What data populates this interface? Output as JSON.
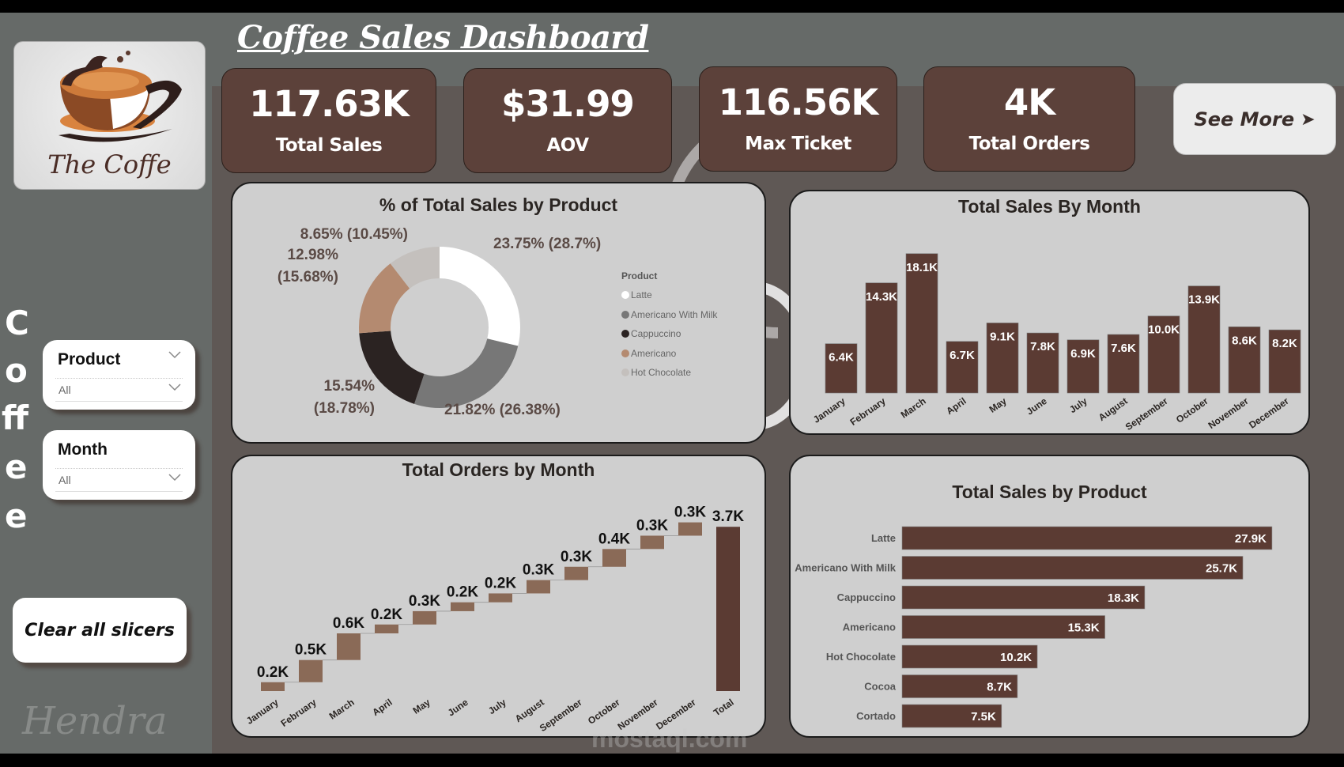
{
  "header": {
    "title": "Coffee Sales Dashboard",
    "logo_text": "The Coffe",
    "see_more_label": "See More"
  },
  "kpis": [
    {
      "value": "117.63K",
      "label": "Total Sales"
    },
    {
      "value": "$31.99",
      "label": "AOV"
    },
    {
      "value": "116.56K",
      "label": "Max Ticket"
    },
    {
      "value": "4K",
      "label": "Total Orders"
    }
  ],
  "sidebar": {
    "vertical_word": [
      "C",
      "o",
      "ff",
      "e",
      "e"
    ],
    "slicers": [
      {
        "title": "Product",
        "value": "All"
      },
      {
        "title": "Month",
        "value": "All"
      }
    ],
    "clear_label": "Clear all slicers",
    "signature": "Hendra"
  },
  "watermark": "mostaql.com",
  "colors": {
    "bar": "#5b3b33",
    "waterfall_step": "#8a6a57",
    "panel_bg": "#cfcfcf",
    "kpi_bg": "#5c413a"
  },
  "chart_data": [
    {
      "type": "pie",
      "variant": "donut",
      "title": "% of Total Sales by Product",
      "legend_title": "Product",
      "legend_position": "right",
      "slices": [
        {
          "name": "Latte",
          "value": 23.75,
          "label": "23.75% (28.7%)",
          "color": "#ffffff"
        },
        {
          "name": "Americano With Milk",
          "value": 21.82,
          "label": "21.82% (26.38%)",
          "color": "#777777"
        },
        {
          "name": "Cappuccino",
          "value": 15.54,
          "label": "15.54% (18.78%)",
          "color": "#2b2322"
        },
        {
          "name": "Americano",
          "value": 12.98,
          "label": "12.98% (15.68%)",
          "color": "#b48a70"
        },
        {
          "name": "Hot Chocolate",
          "value": 8.65,
          "label": "8.65% (10.45%)",
          "color": "#c4c0bd"
        }
      ]
    },
    {
      "type": "bar",
      "title": "Total Sales By Month",
      "categories": [
        "January",
        "February",
        "March",
        "April",
        "May",
        "June",
        "July",
        "August",
        "September",
        "October",
        "November",
        "December"
      ],
      "values": [
        6.4,
        14.3,
        18.1,
        6.7,
        9.1,
        7.8,
        6.9,
        7.6,
        10.0,
        13.9,
        8.6,
        8.2
      ],
      "labels": [
        "6.4K",
        "14.3K",
        "18.1K",
        "6.7K",
        "9.1K",
        "7.8K",
        "6.9K",
        "7.6K",
        "10.0K",
        "13.9K",
        "8.6K",
        "8.2K"
      ],
      "unit": "K",
      "ylim": [
        0,
        19
      ]
    },
    {
      "type": "bar",
      "variant": "waterfall",
      "title": "Total Orders by Month",
      "categories": [
        "January",
        "February",
        "March",
        "April",
        "May",
        "June",
        "July",
        "August",
        "September",
        "October",
        "November",
        "December",
        "Total"
      ],
      "values": [
        0.2,
        0.5,
        0.6,
        0.2,
        0.3,
        0.2,
        0.2,
        0.3,
        0.3,
        0.4,
        0.3,
        0.3,
        3.7
      ],
      "labels": [
        "0.2K",
        "0.5K",
        "0.6K",
        "0.2K",
        "0.3K",
        "0.2K",
        "0.2K",
        "0.3K",
        "0.3K",
        "0.4K",
        "0.3K",
        "0.3K",
        "3.7K"
      ],
      "unit": "K",
      "ylim": [
        0,
        3.9
      ]
    },
    {
      "type": "bar",
      "orientation": "horizontal",
      "title": "Total Sales by Product",
      "categories": [
        "Latte",
        "Americano With Milk",
        "Cappuccino",
        "Americano",
        "Hot Chocolate",
        "Cocoa",
        "Cortado"
      ],
      "values": [
        27.9,
        25.7,
        18.3,
        15.3,
        10.2,
        8.7,
        7.5
      ],
      "labels": [
        "27.9K",
        "25.7K",
        "18.3K",
        "15.3K",
        "10.2K",
        "8.7K",
        "7.5K"
      ],
      "unit": "K",
      "xlim": [
        0,
        28.5
      ]
    }
  ]
}
